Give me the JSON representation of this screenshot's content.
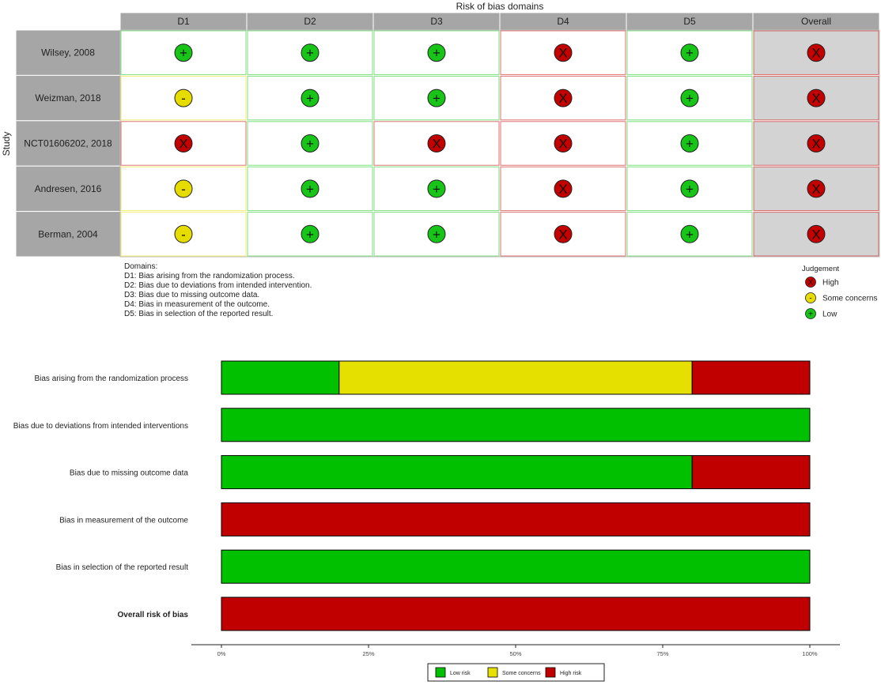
{
  "chart_data": [
    {
      "type": "table",
      "title": "Risk of bias domains",
      "ylabel": "Study",
      "columns": [
        "D1",
        "D2",
        "D3",
        "D4",
        "D5",
        "Overall"
      ],
      "studies": [
        {
          "name": "Wilsey, 2008",
          "judgements": [
            "low",
            "low",
            "low",
            "high",
            "low",
            "high"
          ]
        },
        {
          "name": "Weizman, 2018",
          "judgements": [
            "some",
            "low",
            "low",
            "high",
            "low",
            "high"
          ]
        },
        {
          "name": "NCT01606202, 2018",
          "judgements": [
            "high",
            "low",
            "high",
            "high",
            "low",
            "high"
          ]
        },
        {
          "name": "Andresen, 2016",
          "judgements": [
            "some",
            "low",
            "low",
            "high",
            "low",
            "high"
          ]
        },
        {
          "name": "Berman, 2004",
          "judgements": [
            "some",
            "low",
            "low",
            "high",
            "low",
            "high"
          ]
        }
      ],
      "symbols": {
        "low": "+",
        "some": "-",
        "high": "X"
      },
      "colors": {
        "low": "#17c417",
        "some": "#e6dc00",
        "high": "#c40000",
        "header": "#a6a6a6",
        "overall_bg": "#d3d3d3"
      },
      "judgement_legend": {
        "title": "Judgement",
        "items": [
          {
            "key": "high",
            "label": "High"
          },
          {
            "key": "some",
            "label": "Some concerns"
          },
          {
            "key": "low",
            "label": "Low"
          }
        ]
      },
      "domains_note": {
        "title": "Domains:",
        "lines": [
          "D1: Bias arising from the randomization process.",
          "D2: Bias due to deviations from intended intervention.",
          "D3: Bias due to missing outcome data.",
          "D4: Bias in measurement of the outcome.",
          "D5: Bias in selection of the reported result."
        ]
      }
    },
    {
      "type": "bar",
      "orientation": "horizontal",
      "stacked": true,
      "categories": [
        "Bias arising from the randomization process",
        "Bias due to deviations from intended interventions",
        "Bias due to missing outcome data",
        "Bias in measurement of the outcome",
        "Bias in selection of the reported result",
        "Overall risk of bias"
      ],
      "bold_category": "Overall risk of bias",
      "series": [
        {
          "name": "Low risk",
          "color": "#00c000",
          "values": [
            20,
            100,
            80,
            0,
            100,
            0
          ]
        },
        {
          "name": "Some concerns",
          "color": "#e5e000",
          "values": [
            60,
            0,
            0,
            0,
            0,
            0
          ]
        },
        {
          "name": "High risk",
          "color": "#c00000",
          "values": [
            20,
            0,
            20,
            100,
            0,
            100
          ]
        }
      ],
      "xlim": [
        0,
        100
      ],
      "xticks": [
        {
          "value": 0,
          "label": "0%"
        },
        {
          "value": 25,
          "label": "25%"
        },
        {
          "value": 50,
          "label": "50%"
        },
        {
          "value": 75,
          "label": "75%"
        },
        {
          "value": 100,
          "label": "100%"
        }
      ],
      "legend_position": "bottom"
    }
  ]
}
